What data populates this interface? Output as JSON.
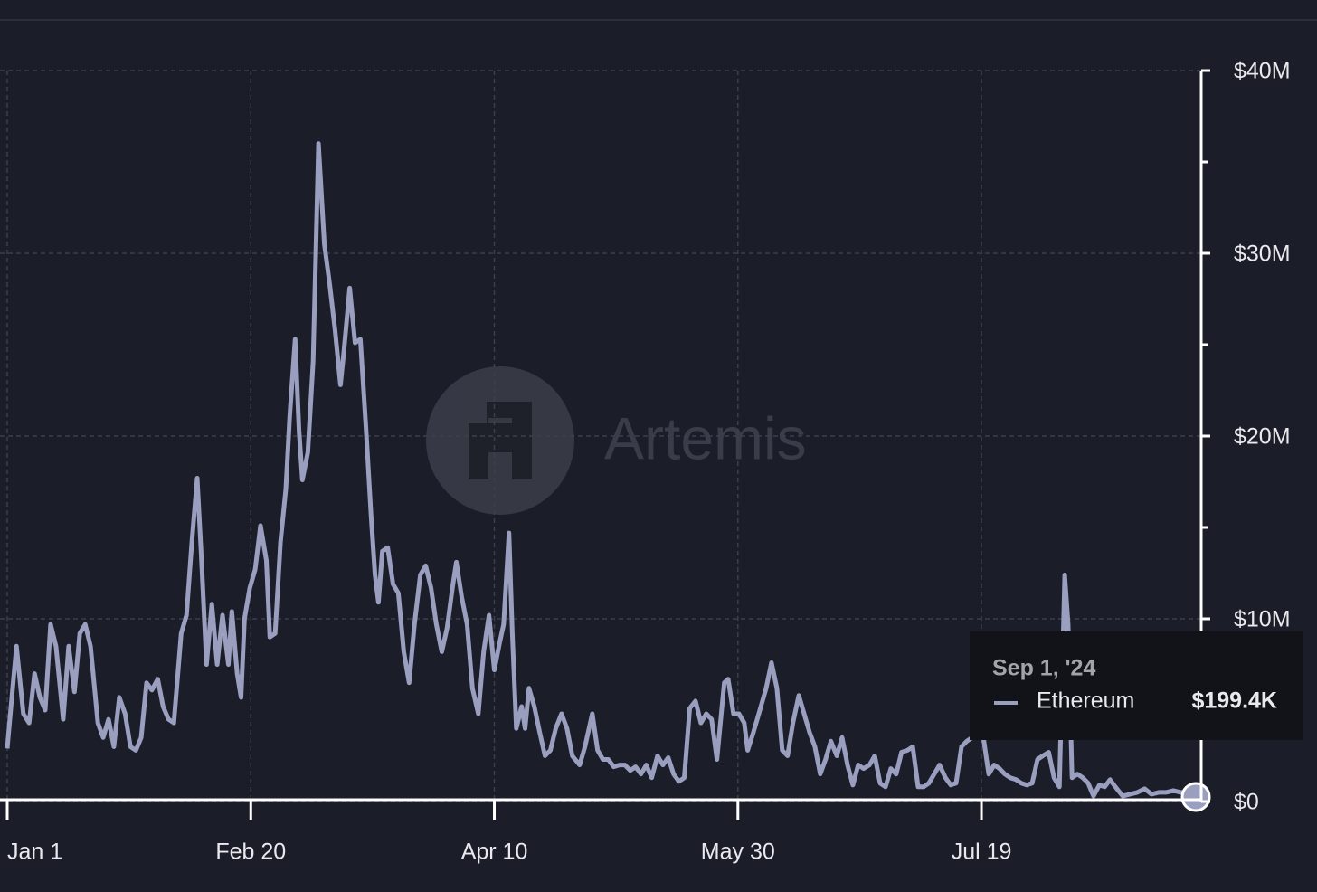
{
  "chart_data": {
    "type": "line",
    "watermark": "Artemis",
    "xlim": [
      0,
      244
    ],
    "xticks": [
      {
        "value": 0,
        "label": "Jan 1"
      },
      {
        "value": 50,
        "label": "Feb 20"
      },
      {
        "value": 100,
        "label": "Apr 10"
      },
      {
        "value": 150,
        "label": "May 30"
      },
      {
        "value": 200,
        "label": "Jul 19"
      }
    ],
    "ylim": [
      0,
      40
    ],
    "yticks": [
      {
        "value": 0,
        "label": "$0"
      },
      {
        "value": 10,
        "label": "$10M"
      },
      {
        "value": 20,
        "label": "$20M"
      },
      {
        "value": 30,
        "label": "$30M"
      },
      {
        "value": 40,
        "label": "$40M"
      }
    ],
    "yminor": [
      5,
      15,
      25,
      35
    ],
    "grid": true,
    "x": [
      0,
      1.9,
      3.3,
      4.5,
      5.6,
      6.7,
      7.8,
      8.9,
      10.0,
      11.5,
      12.6,
      13.8,
      14.9,
      16.0,
      17.1,
      18.6,
      19.7,
      20.8,
      21.9,
      23.0,
      24.2,
      25.3,
      26.4,
      27.5,
      28.6,
      29.7,
      30.9,
      32.0,
      33.1,
      34.2,
      35.7,
      36.8,
      37.9,
      39.0,
      39.8,
      40.9,
      42.0,
      43.1,
      44.2,
      45.4,
      46.1,
      47.2,
      48.0,
      48.7,
      49.8,
      50.9,
      52.0,
      53.2,
      53.9,
      55.0,
      56.1,
      57.2,
      58.0,
      59.1,
      59.9,
      60.6,
      61.7,
      62.8,
      63.9,
      65.1,
      66.2,
      67.3,
      68.4,
      69.1,
      70.3,
      71.4,
      72.5,
      73.6,
      74.7,
      75.5,
      76.2,
      77.0,
      78.1,
      79.2,
      80.3,
      81.4,
      82.5,
      83.6,
      84.8,
      85.9,
      87.0,
      88.1,
      89.2,
      90.3,
      91.4,
      92.2,
      93.3,
      94.4,
      95.5,
      96.7,
      97.8,
      98.9,
      100.0,
      101.1,
      101.9,
      103.0,
      103.7,
      104.5,
      105.6,
      106.3,
      107.1,
      108.2,
      109.3,
      110.4,
      111.5,
      112.6,
      113.8,
      114.9,
      116.0,
      117.5,
      118.6,
      120.1,
      121.2,
      122.3,
      123.4,
      124.5,
      125.7,
      126.8,
      127.9,
      129.0,
      130.1,
      131.2,
      132.3,
      133.5,
      134.6,
      135.7,
      136.8,
      137.9,
      139.0,
      140.1,
      141.3,
      142.4,
      143.5,
      144.6,
      145.7,
      147.2,
      148.0,
      149.1,
      150.2,
      151.3,
      152.0,
      153.2,
      154.3,
      155.8,
      156.9,
      158.0,
      159.1,
      160.2,
      161.3,
      162.5,
      163.6,
      164.7,
      165.8,
      166.9,
      168.0,
      169.1,
      170.3,
      171.4,
      172.5,
      173.6,
      174.7,
      175.8,
      177.0,
      178.1,
      179.2,
      180.3,
      181.4,
      182.5,
      183.6,
      184.8,
      185.9,
      187.0,
      188.1,
      189.2,
      190.3,
      191.4,
      192.6,
      193.7,
      194.8,
      195.9,
      197.0,
      198.1,
      199.3,
      200.4,
      201.5,
      202.6,
      203.7,
      204.8,
      205.9,
      207.1,
      208.2,
      209.3,
      210.4,
      211.5,
      212.6,
      213.8,
      214.9,
      216.0,
      217.1,
      217.8,
      218.6,
      219.7,
      220.8,
      221.9,
      223.0,
      224.2,
      225.3,
      226.4,
      227.5,
      229.0,
      230.5,
      232.0,
      233.5,
      234.9,
      236.4,
      237.9,
      239.4,
      240.9,
      242.4,
      244
    ],
    "series": [
      {
        "name": "Ethereum",
        "color": "#9a9fbf",
        "values": [
          2.9,
          8.5,
          4.8,
          4.3,
          7.0,
          5.7,
          5.0,
          9.7,
          8.5,
          4.5,
          8.5,
          6.0,
          9.2,
          9.7,
          8.5,
          4.3,
          3.5,
          4.5,
          3.0,
          5.7,
          4.8,
          3.0,
          2.8,
          3.5,
          6.5,
          6.1,
          6.7,
          5.2,
          4.5,
          4.3,
          9.2,
          10.2,
          14.2,
          17.7,
          13.7,
          7.5,
          10.8,
          7.5,
          10.2,
          7.5,
          10.4,
          7.0,
          5.7,
          10.0,
          11.7,
          12.7,
          15.1,
          13.2,
          9.0,
          9.2,
          14.2,
          17.1,
          21.1,
          25.3,
          20.3,
          17.6,
          19.1,
          24.1,
          36.0,
          30.5,
          28.3,
          25.8,
          22.8,
          24.6,
          28.1,
          25.1,
          25.3,
          20.6,
          15.6,
          12.4,
          10.9,
          13.7,
          13.9,
          11.9,
          11.4,
          8.2,
          6.5,
          9.7,
          12.4,
          12.9,
          11.7,
          9.7,
          8.2,
          9.5,
          11.7,
          13.1,
          11.2,
          9.7,
          6.2,
          4.8,
          8.2,
          10.2,
          7.2,
          8.7,
          9.7,
          14.7,
          9.2,
          4.0,
          5.2,
          4.0,
          6.2,
          5.2,
          3.8,
          2.5,
          2.8,
          4.0,
          4.8,
          4.0,
          2.5,
          2.0,
          3.0,
          4.8,
          2.8,
          2.3,
          2.3,
          1.9,
          2.0,
          2.0,
          1.7,
          1.9,
          1.5,
          2.0,
          1.3,
          2.5,
          2.0,
          2.4,
          1.5,
          1.1,
          1.3,
          5.1,
          5.5,
          4.3,
          4.8,
          4.5,
          2.3,
          6.5,
          6.7,
          4.8,
          4.8,
          4.3,
          2.8,
          3.8,
          4.8,
          6.2,
          7.6,
          6.2,
          2.8,
          2.5,
          4.3,
          5.8,
          4.8,
          3.8,
          3.0,
          1.5,
          2.3,
          3.3,
          2.5,
          3.5,
          2.0,
          0.9,
          2.0,
          1.8,
          2.0,
          2.5,
          1.0,
          0.8,
          1.8,
          1.5,
          2.7,
          2.8,
          3.0,
          0.8,
          0.8,
          1.0,
          1.5,
          2.0,
          1.3,
          0.9,
          1.0,
          3.0,
          3.3,
          3.5,
          3.7,
          3.5,
          1.5,
          2.0,
          1.8,
          1.5,
          1.3,
          1.2,
          1.0,
          0.9,
          1.0,
          2.3,
          2.5,
          2.7,
          1.3,
          0.8,
          12.4,
          9.7,
          1.3,
          1.5,
          1.3,
          1.0,
          0.3,
          0.9,
          0.8,
          1.2,
          0.8,
          0.3,
          0.4,
          0.5,
          0.7,
          0.4,
          0.5,
          0.5,
          0.6,
          0.5,
          0.5,
          0.1994
        ]
      }
    ],
    "tooltip": {
      "date": "Sep 1, '24",
      "series": "Ethereum",
      "label": "$199.4K"
    }
  }
}
